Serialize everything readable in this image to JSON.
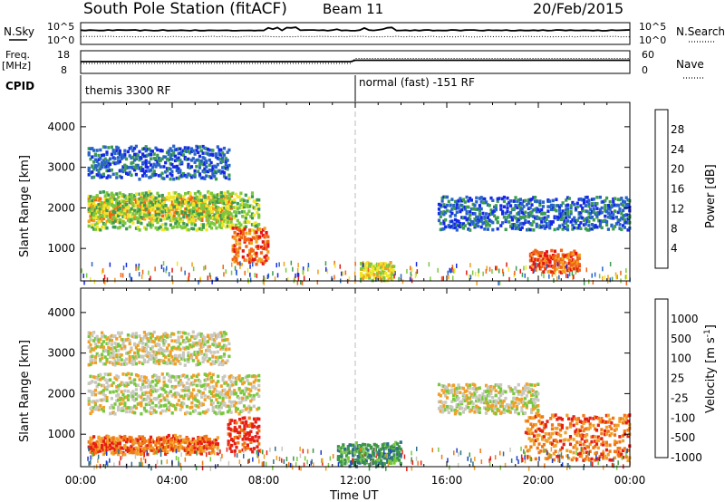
{
  "header": {
    "title": "South Pole Station (fitACF)",
    "beam": "Beam 11",
    "date": "20/Feb/2015"
  },
  "top_panels": {
    "nsky_label": "N.Sky",
    "nsky_ticks": [
      "10^5",
      "10^0"
    ],
    "nsearch_label": "N.Search",
    "nsearch_ticks": [
      "10^5",
      "10^0"
    ],
    "freq_label_1": "Freq.",
    "freq_label_2": "[MHz]",
    "freq_ticks": [
      "18",
      "8"
    ],
    "nave_label": "Nave",
    "nave_ticks": [
      "60",
      "0"
    ],
    "cpid_label": "CPID",
    "cpid_segments": [
      "themis 3300 RF",
      "normal (fast) -151 RF"
    ],
    "cpid_switch_hour": 12
  },
  "chart_data": [
    {
      "type": "heatmap",
      "name": "power",
      "ylabel": "Slant Range [km]",
      "xlabel": "",
      "ylim": [
        200,
        4600
      ],
      "yticks": [
        "1000",
        "2000",
        "3000",
        "4000"
      ],
      "xlim": [
        0,
        24
      ],
      "colorbar": {
        "label": "Power [dB]",
        "tick_labels": [
          "4",
          "8",
          "12",
          "16",
          "20",
          "24",
          "28"
        ],
        "colors": [
          "#1428e6",
          "#2864c8",
          "#3c9b50",
          "#7cc83c",
          "#f0e628",
          "#f0a01e",
          "#f06414",
          "#e61414"
        ]
      },
      "echo_regions": [
        {
          "t0": 0.3,
          "t1": 6.6,
          "r0": 1750,
          "r1": 2350,
          "level": 5
        },
        {
          "t0": 0.3,
          "t1": 7.8,
          "r0": 1550,
          "r1": 2500,
          "level": 3
        },
        {
          "t0": 6.6,
          "t1": 8.2,
          "r0": 700,
          "r1": 1600,
          "level": 6
        },
        {
          "t0": 12.2,
          "t1": 13.7,
          "r0": 300,
          "r1": 700,
          "level": 4
        },
        {
          "t0": 15.6,
          "t1": 24.0,
          "r0": 1550,
          "r1": 2350,
          "level": 1
        },
        {
          "t0": 19.6,
          "t1": 21.8,
          "r0": 500,
          "r1": 1000,
          "level": 6
        },
        {
          "t0": 0.3,
          "t1": 6.5,
          "r0": 2800,
          "r1": 3600,
          "level": 1
        }
      ]
    },
    {
      "type": "heatmap",
      "name": "velocity",
      "ylabel": "Slant Range [km]",
      "xlabel": "Time UT",
      "ylim": [
        200,
        4600
      ],
      "yticks": [
        "1000",
        "2000",
        "3000",
        "4000"
      ],
      "xlim": [
        0,
        24
      ],
      "xticks": [
        "00:00",
        "04:00",
        "08:00",
        "12:00",
        "16:00",
        "20:00",
        "00:00"
      ],
      "colorbar": {
        "label": "Velocity [m s",
        "label_sup": "-1",
        "label_end": "]",
        "tick_labels": [
          "1000",
          "500",
          "100",
          "25",
          "-25",
          "-100",
          "-500",
          "-1000"
        ],
        "colors": [
          "#1e3cc8",
          "#2d6e8c",
          "#3c9646",
          "#78c83c",
          "#c8c8c0",
          "#f0a028",
          "#f07814",
          "#e61e14"
        ]
      },
      "echo_regions": [
        {
          "t0": 0.3,
          "t1": 7.8,
          "r0": 1600,
          "r1": 2600,
          "level": 4
        },
        {
          "t0": 6.4,
          "t1": 7.8,
          "r0": 650,
          "r1": 1500,
          "level": 7
        },
        {
          "t0": 0.3,
          "t1": 6.0,
          "r0": 600,
          "r1": 1000,
          "level": 6
        },
        {
          "t0": 11.2,
          "t1": 14.0,
          "r0": 300,
          "r1": 850,
          "level": 2
        },
        {
          "t0": 15.6,
          "t1": 20.0,
          "r0": 1600,
          "r1": 2300,
          "level": 4
        },
        {
          "t0": 19.4,
          "t1": 24.0,
          "r0": 450,
          "r1": 1600,
          "level": 6
        },
        {
          "t0": 0.3,
          "t1": 6.5,
          "r0": 2800,
          "r1": 3600,
          "level": 4
        }
      ]
    }
  ]
}
